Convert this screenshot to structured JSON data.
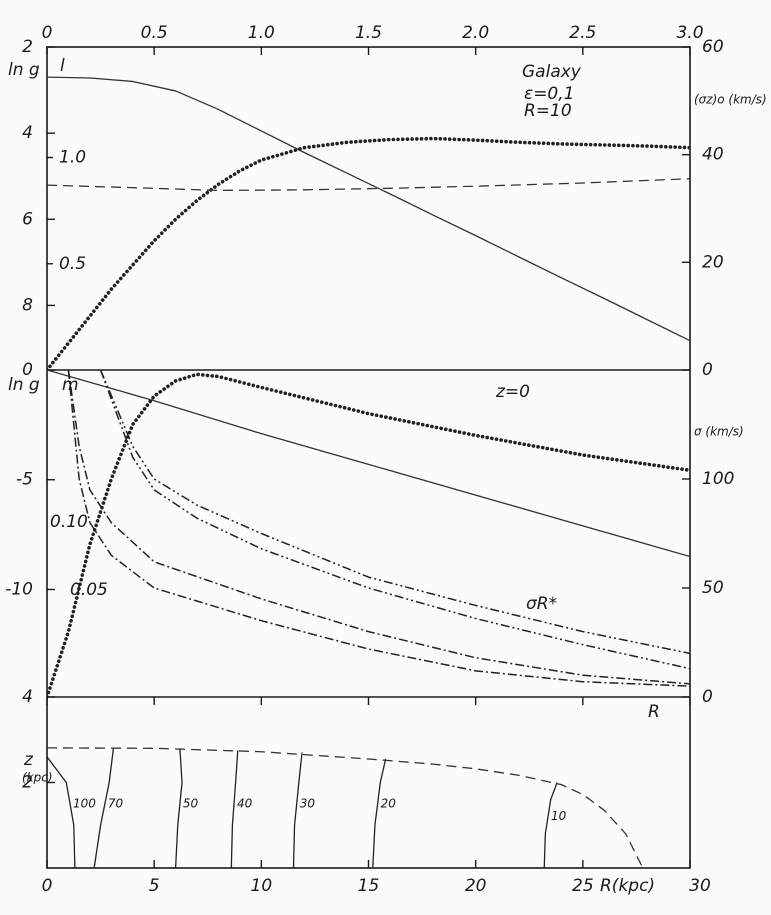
{
  "chart_data": [
    {
      "type": "line",
      "xlim": [
        0,
        30
      ],
      "x2lim": [
        0,
        3
      ],
      "x2ticks": [
        0,
        0.5,
        {
          "value": 1,
          "label": "1.0"
        },
        1.5,
        {
          "value": 2,
          "label": "2.0"
        },
        2.5,
        {
          "value": 3,
          "label": "3.0"
        }
      ],
      "ylim": [
        9.5,
        2
      ],
      "yticks": [
        2,
        4,
        6,
        8
      ],
      "ylabel": "ln g",
      "y2lim": [
        0,
        60
      ],
      "y2ticks": [
        0,
        20,
        40,
        60
      ],
      "y2label": "(σz)o (km/s)",
      "y3lim": [
        0,
        1.52
      ],
      "y3ticks": [
        {
          "value": 1,
          "label": "1.0"
        },
        0.5
      ],
      "y3label": "l",
      "annotations": [
        "Galaxy",
        "ε=0,1",
        "R=10"
      ],
      "series": [
        {
          "color": "#333333",
          "style": "solid",
          "x": [
            0,
            2,
            4,
            6,
            8,
            10,
            12,
            14,
            16,
            18,
            20,
            22,
            24,
            26,
            28,
            30
          ],
          "values": [
            2.7,
            2.72,
            2.8,
            3.02,
            3.45,
            3.95,
            4.45,
            4.93,
            5.41,
            5.9,
            6.38,
            6.87,
            7.36,
            7.84,
            8.33,
            8.82
          ]
        },
        {
          "color": "#222222",
          "style": "dotted",
          "axis": "y2",
          "x": [
            0,
            1,
            2,
            3,
            4,
            5,
            6,
            7,
            8,
            9,
            10,
            12,
            14,
            16,
            18,
            20,
            22,
            24,
            26,
            28,
            30
          ],
          "values": [
            0,
            5,
            10,
            15,
            19.5,
            24,
            28,
            31.5,
            34.5,
            37,
            39,
            41.3,
            42.3,
            42.8,
            43,
            42.7,
            42.3,
            42,
            41.8,
            41.6,
            41.3
          ]
        },
        {
          "color": "#333333",
          "style": "dashed",
          "axis": "y3",
          "x": [
            0,
            5,
            8,
            12,
            16,
            20,
            25,
            30
          ],
          "values": [
            0.87,
            0.855,
            0.845,
            0.848,
            0.855,
            0.865,
            0.88,
            0.9
          ]
        }
      ]
    },
    {
      "type": "line",
      "xlim": [
        0,
        30
      ],
      "ylim": [
        -14.9,
        0
      ],
      "yticks": [
        -10,
        -5,
        0
      ],
      "ylabel": "ln g",
      "y2lim": [
        0,
        150
      ],
      "y2ticks": [
        0,
        50,
        100
      ],
      "y2label": "σ (km/s)",
      "annotations": [
        "m",
        "z=0",
        "0.10",
        "0.05",
        "σR*",
        "R"
      ],
      "series": [
        {
          "color": "#333333",
          "style": "solid",
          "x": [
            0,
            5,
            10,
            15,
            20,
            25,
            30
          ],
          "values": [
            0,
            -1.4,
            -2.9,
            -4.3,
            -5.7,
            -7.1,
            -8.5
          ]
        },
        {
          "color": "#222222",
          "style": "dotted",
          "axis": "y2",
          "x": [
            0,
            1,
            2,
            3,
            4,
            5,
            6,
            7,
            8,
            10,
            15,
            20,
            25,
            30
          ],
          "values": [
            0,
            30,
            70,
            100,
            125,
            138,
            145,
            148,
            147,
            142,
            130,
            120,
            111,
            104
          ]
        },
        {
          "color": "#222222",
          "style": "dashdotdot",
          "axis": "y2",
          "x": [
            2.5,
            4,
            5,
            7,
            10,
            15,
            20,
            25,
            30
          ],
          "values": [
            150,
            115,
            100,
            88,
            75,
            55,
            42,
            30,
            20
          ]
        },
        {
          "color": "#222222",
          "style": "dashdotdot",
          "axis": "y2",
          "x": [
            2.5,
            4,
            5,
            7,
            10,
            15,
            20,
            25,
            30
          ],
          "values": [
            150,
            110,
            95,
            82,
            68,
            50,
            36,
            24,
            13
          ]
        },
        {
          "color": "#222222",
          "style": "dashdot",
          "axis": "y2",
          "x": [
            1,
            1.5,
            2,
            3,
            5,
            10,
            15,
            20,
            25,
            30
          ],
          "values": [
            150,
            115,
            95,
            80,
            62,
            45,
            30,
            18,
            10,
            6
          ]
        },
        {
          "color": "#222222",
          "style": "dashdot",
          "axis": "y2",
          "x": [
            1,
            1.5,
            2,
            3,
            5,
            10,
            15,
            20,
            25,
            30
          ],
          "values": [
            150,
            100,
            80,
            65,
            50,
            35,
            22,
            12,
            7,
            5
          ]
        }
      ]
    },
    {
      "type": "line",
      "xlim": [
        0,
        30
      ],
      "xticks": [
        0,
        5,
        10,
        15,
        20,
        25,
        30
      ],
      "xlabel": "R(kpc)",
      "ylim": [
        0,
        4
      ],
      "yticks": [
        2,
        4
      ],
      "ylabel": "z",
      "annotations": [
        "(kpc)"
      ],
      "series": [
        {
          "color": "#333333",
          "style": "dashed",
          "x": [
            0,
            5,
            10,
            15,
            18,
            20,
            22,
            24,
            25,
            26,
            27,
            27.8
          ],
          "values": [
            2.81,
            2.8,
            2.72,
            2.55,
            2.43,
            2.32,
            2.17,
            1.95,
            1.72,
            1.35,
            0.8,
            0
          ]
        },
        {
          "color": "#222222",
          "style": "solid",
          "label": "100",
          "x": [
            1.3,
            1.25,
            0.9,
            0
          ],
          "values": [
            0,
            1,
            2,
            2.6
          ]
        },
        {
          "color": "#222222",
          "style": "solid",
          "label": "70",
          "x": [
            2.2,
            2.5,
            2.9,
            3.1
          ],
          "values": [
            0,
            1,
            2,
            2.8
          ]
        },
        {
          "color": "#222222",
          "style": "solid",
          "label": "50",
          "x": [
            6.0,
            6.1,
            6.3,
            6.2
          ],
          "values": [
            0,
            1,
            2,
            2.8
          ]
        },
        {
          "color": "#222222",
          "style": "solid",
          "label": "40",
          "x": [
            8.6,
            8.65,
            8.8,
            8.9
          ],
          "values": [
            0,
            1,
            2,
            2.75
          ]
        },
        {
          "color": "#222222",
          "style": "solid",
          "label": "30",
          "x": [
            11.5,
            11.55,
            11.75,
            11.9
          ],
          "values": [
            0,
            1,
            2,
            2.7
          ]
        },
        {
          "color": "#222222",
          "style": "solid",
          "label": "20",
          "x": [
            15.2,
            15.3,
            15.55,
            15.8
          ],
          "values": [
            0,
            1,
            2,
            2.55
          ]
        },
        {
          "color": "#222222",
          "style": "solid",
          "label": "10",
          "x": [
            23.2,
            23.25,
            23.5,
            23.8
          ],
          "values": [
            0,
            0.8,
            1.6,
            2.0
          ]
        }
      ]
    }
  ]
}
